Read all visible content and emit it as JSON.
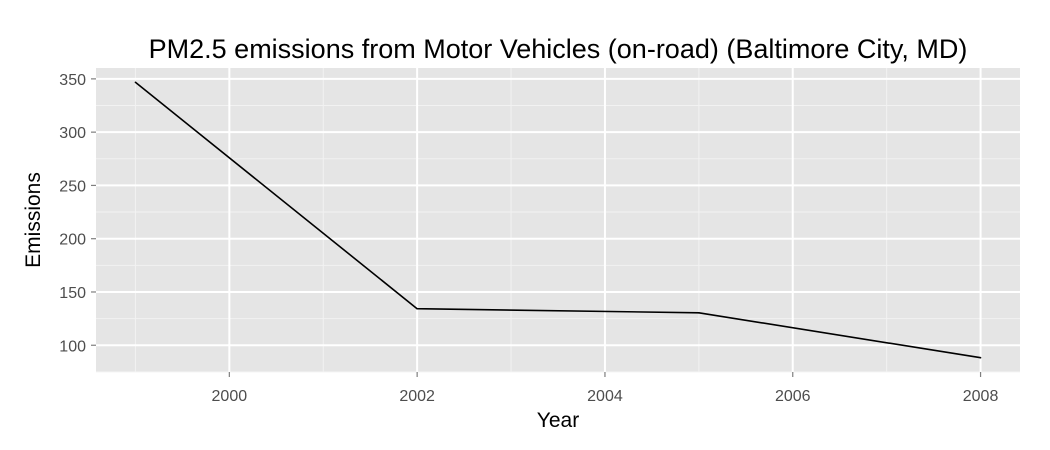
{
  "chart_data": {
    "type": "line",
    "title": "PM2.5 emissions from Motor Vehicles (on-road) (Baltimore City, MD)",
    "xlabel": "Year",
    "ylabel": "Emissions",
    "x": [
      1999,
      2002,
      2005,
      2008
    ],
    "series": [
      {
        "values": [
          346.82,
          134.31,
          130.43,
          88.28
        ]
      }
    ],
    "xlim": [
      1998.58,
      2008.42
    ],
    "ylim": [
      74.9,
      360.2
    ],
    "xticks": [
      "2000",
      "2002",
      "2004",
      "2006",
      "2008"
    ],
    "yticks": [
      "100",
      "150",
      "200",
      "250",
      "300",
      "350"
    ],
    "grid": true,
    "legend": "none",
    "colors": {
      "panel_background": "#e5e5e5",
      "grid_major": "#ffffff",
      "grid_minor": "#f2f2f2",
      "line": "#000000",
      "tick_text": "#4d4d4d"
    }
  }
}
